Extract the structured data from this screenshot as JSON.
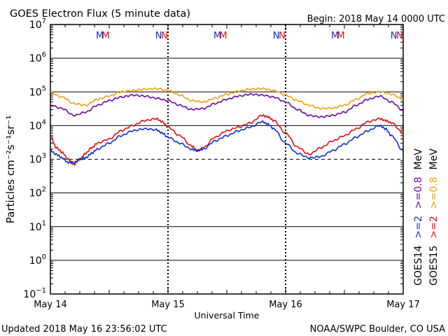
{
  "header": {
    "title": "GOES Electron Flux (5 minute data)",
    "begin": "Begin: 2018 May 14 0000 UTC"
  },
  "footer": {
    "updated": "Updated 2018 May 16 23:56:02 UTC",
    "credit": "NOAA/SWPC Boulder, CO USA"
  },
  "colors": {
    "goes14_high": "#1030d0",
    "goes15_high": "#e01010",
    "goes14_low": "#6a0aa0",
    "goes15_low": "#f0a010",
    "text": "#000000"
  },
  "chart_data": {
    "type": "line",
    "x_unit": "days since 2018 May 14 0000 UTC",
    "xlim": [
      0,
      3
    ],
    "ylim_log10": [
      -1,
      7
    ],
    "y_scale": "log",
    "y_tick_exponents": [
      -1,
      0,
      1,
      2,
      3,
      4,
      5,
      6,
      7
    ],
    "x_tick_labels": [
      "May 14",
      "May 15",
      "May 16",
      "May 17"
    ],
    "xlabel": "Universal Time",
    "ylabel": "Particles cm⁻²s⁻¹sr⁻¹",
    "threshold_line": {
      "y": 1000,
      "style": "dashed"
    },
    "grid": "horizontal decades",
    "legend_right": [
      {
        "text": "GOES14",
        "color": "#000000"
      },
      {
        "text": ">=2",
        "color": "#1030d0"
      },
      {
        "text": ">=0.8",
        "color": "#6a0aa0"
      },
      {
        "text": "MeV",
        "color": "#000000"
      },
      {
        "text": "GOES15",
        "color": "#000000"
      },
      {
        "text": ">=2",
        "color": "#e01010"
      },
      {
        "text": ">=0.8",
        "color": "#f0a010"
      },
      {
        "text": "MeV",
        "color": "#000000"
      }
    ],
    "markers": [
      {
        "x": 0.42,
        "label": "M",
        "color": "#1030d0"
      },
      {
        "x": 0.47,
        "label": "M",
        "color": "#e01010"
      },
      {
        "x": 0.92,
        "label": "N",
        "color": "#1030d0"
      },
      {
        "x": 0.97,
        "label": "N",
        "color": "#e01010"
      },
      {
        "x": 1.42,
        "label": "M",
        "color": "#1030d0"
      },
      {
        "x": 1.47,
        "label": "M",
        "color": "#e01010"
      },
      {
        "x": 1.92,
        "label": "N",
        "color": "#1030d0"
      },
      {
        "x": 1.97,
        "label": "N",
        "color": "#e01010"
      },
      {
        "x": 2.42,
        "label": "M",
        "color": "#1030d0"
      },
      {
        "x": 2.47,
        "label": "M",
        "color": "#e01010"
      },
      {
        "x": 2.92,
        "label": "N",
        "color": "#1030d0"
      },
      {
        "x": 2.97,
        "label": "N",
        "color": "#e01010"
      }
    ],
    "series": [
      {
        "name": "GOES15 >=0.8 MeV",
        "color": "#f0a010",
        "x": [
          0,
          0.1,
          0.2,
          0.3,
          0.4,
          0.5,
          0.6,
          0.7,
          0.8,
          0.9,
          1.0,
          1.1,
          1.2,
          1.3,
          1.4,
          1.5,
          1.6,
          1.7,
          1.8,
          1.9,
          2.0,
          2.1,
          2.2,
          2.3,
          2.4,
          2.5,
          2.6,
          2.7,
          2.8,
          2.9,
          3.0
        ],
        "y": [
          95000,
          70000,
          45000,
          40000,
          60000,
          75000,
          100000,
          110000,
          120000,
          125000,
          110000,
          80000,
          55000,
          50000,
          65000,
          85000,
          105000,
          120000,
          125000,
          110000,
          80000,
          55000,
          40000,
          32000,
          33000,
          40000,
          60000,
          90000,
          100000,
          85000,
          60000
        ]
      },
      {
        "name": "GOES14 >=0.8 MeV",
        "color": "#6a0aa0",
        "x": [
          0,
          0.1,
          0.2,
          0.3,
          0.4,
          0.5,
          0.6,
          0.7,
          0.8,
          0.9,
          1.0,
          1.1,
          1.2,
          1.3,
          1.4,
          1.5,
          1.6,
          1.7,
          1.8,
          1.9,
          2.0,
          2.1,
          2.2,
          2.3,
          2.4,
          2.5,
          2.6,
          2.7,
          2.8,
          2.9,
          3.0
        ],
        "y": [
          40000,
          32000,
          20000,
          25000,
          40000,
          55000,
          70000,
          80000,
          75000,
          65000,
          55000,
          40000,
          30000,
          32000,
          45000,
          60000,
          75000,
          85000,
          80000,
          70000,
          50000,
          30000,
          20000,
          18000,
          20000,
          25000,
          40000,
          60000,
          75000,
          50000,
          28000
        ]
      },
      {
        "name": "GOES15 >=2 MeV",
        "color": "#e01010",
        "x": [
          0,
          0.05,
          0.1,
          0.15,
          0.2,
          0.25,
          0.3,
          0.35,
          0.4,
          0.5,
          0.6,
          0.7,
          0.8,
          0.9,
          0.95,
          1.0,
          1.1,
          1.2,
          1.25,
          1.3,
          1.4,
          1.5,
          1.6,
          1.7,
          1.8,
          1.85,
          1.9,
          2.0,
          2.1,
          2.2,
          2.3,
          2.4,
          2.5,
          2.6,
          2.7,
          2.8,
          2.85,
          2.9,
          3.0
        ],
        "y": [
          5000,
          2200,
          1600,
          1000,
          700,
          1000,
          1500,
          2200,
          3000,
          4000,
          7000,
          10000,
          14000,
          16000,
          13000,
          9000,
          5000,
          2500,
          1800,
          2200,
          4500,
          7000,
          9000,
          12000,
          20000,
          18000,
          14000,
          6000,
          2300,
          1400,
          2200,
          3500,
          5000,
          8000,
          13000,
          16000,
          14000,
          12000,
          6000
        ]
      },
      {
        "name": "GOES14 >=2 MeV",
        "color": "#1030d0",
        "x": [
          0,
          0.05,
          0.1,
          0.15,
          0.2,
          0.25,
          0.3,
          0.35,
          0.4,
          0.5,
          0.6,
          0.7,
          0.8,
          0.9,
          0.95,
          1.0,
          1.1,
          1.2,
          1.25,
          1.3,
          1.4,
          1.5,
          1.6,
          1.7,
          1.8,
          1.85,
          1.9,
          2.0,
          2.1,
          2.2,
          2.3,
          2.4,
          2.5,
          2.6,
          2.7,
          2.8,
          2.85,
          2.9,
          3.0
        ],
        "y": [
          1800,
          1400,
          1100,
          800,
          800,
          1000,
          1100,
          1500,
          2000,
          3000,
          5000,
          7000,
          8000,
          7500,
          6000,
          4500,
          3000,
          2000,
          1800,
          2000,
          3500,
          5000,
          7000,
          9000,
          13000,
          11000,
          8000,
          3000,
          1500,
          1100,
          1200,
          1800,
          2800,
          4500,
          7000,
          10000,
          8000,
          5000,
          1800
        ]
      }
    ]
  }
}
